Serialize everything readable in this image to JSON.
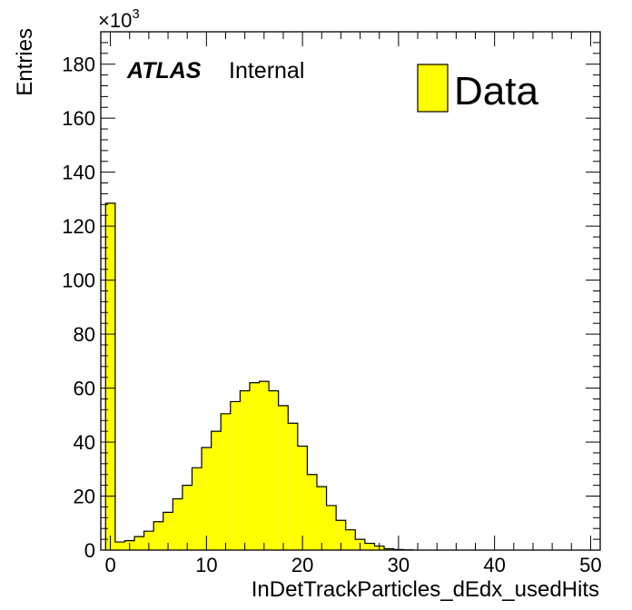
{
  "chart_data": {
    "type": "histogram",
    "xlabel": "InDetTrackParticles_dEdx_usedHits",
    "ylabel": "Entries",
    "y_multiplier": {
      "base": "×10",
      "exponent": "3"
    },
    "xlim": [
      -1,
      51
    ],
    "ylim": [
      0,
      192
    ],
    "x_ticks": [
      0,
      10,
      20,
      30,
      40,
      50
    ],
    "y_ticks": [
      0,
      20,
      40,
      60,
      80,
      100,
      120,
      140,
      160,
      180
    ],
    "fill_color": "#ffff00",
    "bin_width": 1,
    "bins": [
      {
        "x": 0,
        "y": 128.5
      },
      {
        "x": 1,
        "y": 3
      },
      {
        "x": 2,
        "y": 3.5
      },
      {
        "x": 3,
        "y": 5
      },
      {
        "x": 4,
        "y": 7
      },
      {
        "x": 5,
        "y": 10.5
      },
      {
        "x": 6,
        "y": 14
      },
      {
        "x": 7,
        "y": 19
      },
      {
        "x": 8,
        "y": 24
      },
      {
        "x": 9,
        "y": 30.5
      },
      {
        "x": 10,
        "y": 38
      },
      {
        "x": 11,
        "y": 44
      },
      {
        "x": 12,
        "y": 50.5
      },
      {
        "x": 13,
        "y": 55
      },
      {
        "x": 14,
        "y": 59
      },
      {
        "x": 15,
        "y": 62
      },
      {
        "x": 16,
        "y": 62.5
      },
      {
        "x": 17,
        "y": 59
      },
      {
        "x": 18,
        "y": 53.5
      },
      {
        "x": 19,
        "y": 47
      },
      {
        "x": 20,
        "y": 38.5
      },
      {
        "x": 21,
        "y": 28
      },
      {
        "x": 22,
        "y": 23.5
      },
      {
        "x": 23,
        "y": 16.5
      },
      {
        "x": 24,
        "y": 11
      },
      {
        "x": 25,
        "y": 7.5
      },
      {
        "x": 26,
        "y": 4
      },
      {
        "x": 27,
        "y": 2.5
      },
      {
        "x": 28,
        "y": 1.5
      },
      {
        "x": 29,
        "y": 0.5
      },
      {
        "x": 30,
        "y": 0.2
      },
      {
        "x": 31,
        "y": 0.1
      }
    ],
    "legend": {
      "entries": [
        "Data"
      ],
      "placement": "top-right"
    },
    "annotations": {
      "experiment": "ATLAS",
      "status": "Internal"
    }
  }
}
